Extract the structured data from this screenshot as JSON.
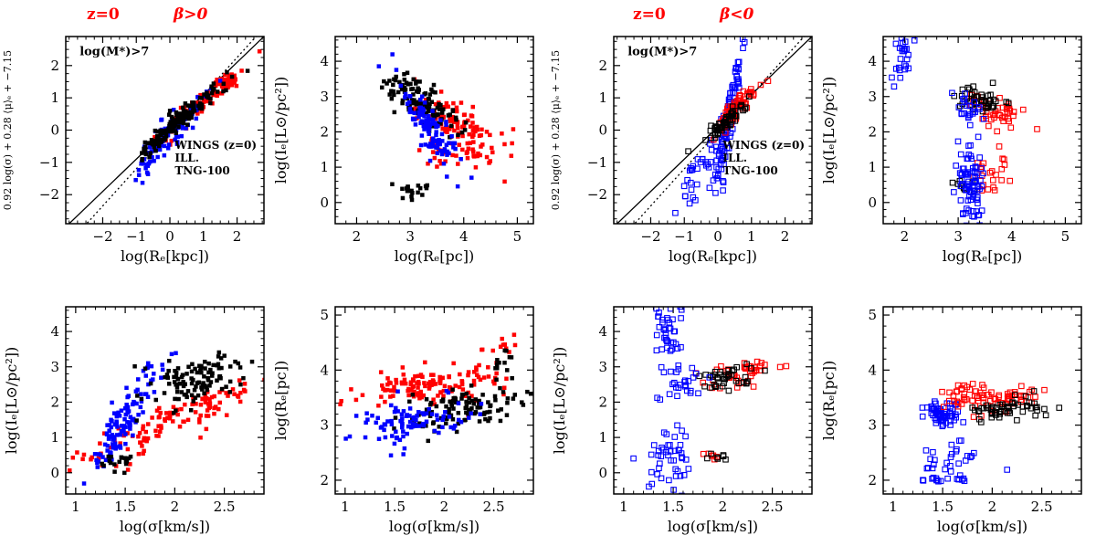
{
  "page": {
    "background": "#ffffff"
  },
  "groups": [
    {
      "id": "left",
      "z_label": "z=0",
      "beta_label": "β>0"
    },
    {
      "id": "right",
      "z_label": "z=0",
      "beta_label": "β<0"
    }
  ],
  "colors": {
    "wings": "#000000",
    "ill": "#ff0000",
    "tng": "#0000ff",
    "annotation": "#ff0000"
  },
  "chart_data": [
    {
      "id": "p1",
      "type": "scatter",
      "group": "left",
      "row": 0,
      "col": 0,
      "marker": "filled",
      "xlabel": "log(Rₑ[kpc])",
      "ylabel": "0.92 log(σ) + 0.28 ⟨μ⟩ₑ + −7.15",
      "ylabel_size": 11,
      "xlim": [
        -3.1,
        2.8
      ],
      "ylim": [
        -2.9,
        2.9
      ],
      "xticks": [
        -2,
        -1,
        0,
        1,
        2
      ],
      "yticks": [
        -2,
        -1,
        0,
        1,
        2
      ],
      "xminor": 0.25,
      "yminor": 0.25,
      "lines": [
        {
          "style": "solid",
          "slope": 1.0,
          "intercept": 0.1
        },
        {
          "style": "dotted",
          "slope": 1.15,
          "intercept": -0.05
        }
      ],
      "annotations": [
        {
          "text": "log(M*)>7",
          "color": "#ff0000",
          "fx": 0.07,
          "fy": 0.9,
          "size": 13
        }
      ],
      "legend": {
        "fx": 0.55,
        "fy": 0.4,
        "entries": [
          {
            "label": "WINGS (z=0)",
            "color": "#000000"
          },
          {
            "label": "ILL.",
            "color": "#ff0000"
          },
          {
            "label": "TNG-100",
            "color": "#0000ff"
          }
        ]
      },
      "series": [
        {
          "name": "ILL.",
          "color": "#ff0000",
          "clusters": [
            {
              "n": 90,
              "x": 0.75,
              "y": 0.7,
              "sx": 0.6,
              "sy": 0.55,
              "cor": 0.93
            },
            {
              "n": 30,
              "x": 1.75,
              "y": 1.5,
              "sx": 0.22,
              "sy": 0.16,
              "cor": 0.5
            }
          ]
        },
        {
          "name": "TNG-100",
          "color": "#0000ff",
          "clusters": [
            {
              "n": 90,
              "x": 0.15,
              "y": 0.05,
              "sx": 0.5,
              "sy": 0.5,
              "cor": 0.9
            },
            {
              "n": 25,
              "x": -0.7,
              "y": -0.95,
              "sx": 0.28,
              "sy": 0.38,
              "cor": 0.8
            }
          ]
        },
        {
          "name": "WINGS (z=0)",
          "color": "#000000",
          "clusters": [
            {
              "n": 140,
              "x": 0.5,
              "y": 0.5,
              "sx": 0.55,
              "sy": 0.5,
              "cor": 0.95
            },
            {
              "n": 25,
              "x": -0.45,
              "y": -0.35,
              "sx": 0.25,
              "sy": 0.25,
              "cor": 0.8
            }
          ]
        }
      ]
    },
    {
      "id": "p2",
      "type": "scatter",
      "group": "left",
      "row": 0,
      "col": 1,
      "marker": "filled",
      "xlabel": "log(Rₑ[pc])",
      "ylabel": "log(Iₑ[L⊙/pc²])",
      "xlim": [
        1.6,
        5.3
      ],
      "ylim": [
        -0.6,
        4.7
      ],
      "xticks": [
        2,
        3,
        4,
        5
      ],
      "yticks": [
        0,
        1,
        2,
        3,
        4
      ],
      "xminor": 0.2,
      "yminor": 0.2,
      "series": [
        {
          "name": "ILL.",
          "color": "#ff0000",
          "clusters": [
            {
              "n": 110,
              "x": 3.9,
              "y": 2.15,
              "sx": 0.45,
              "sy": 0.5,
              "cor": -0.75
            },
            {
              "n": 22,
              "x": 3.75,
              "y": 1.35,
              "sx": 0.28,
              "sy": 0.22,
              "cor": 0
            }
          ]
        },
        {
          "name": "WINGS (z=0)",
          "color": "#000000",
          "clusters": [
            {
              "n": 120,
              "x": 3.2,
              "y": 2.85,
              "sx": 0.33,
              "sy": 0.4,
              "cor": -0.7
            },
            {
              "n": 20,
              "x": 2.95,
              "y": 0.35,
              "sx": 0.16,
              "sy": 0.1,
              "cor": 0
            }
          ]
        },
        {
          "name": "TNG-100",
          "color": "#0000ff",
          "clusters": [
            {
              "n": 110,
              "x": 3.35,
              "y": 2.1,
              "sx": 0.28,
              "sy": 0.65,
              "cor": -0.85
            }
          ]
        }
      ]
    },
    {
      "id": "p3",
      "type": "scatter",
      "group": "left",
      "row": 1,
      "col": 0,
      "marker": "filled",
      "xlabel": "log(σ[km/s])",
      "ylabel": "log(Iₑ[L⊙/pc²])",
      "xlim": [
        0.9,
        2.9
      ],
      "ylim": [
        -0.6,
        4.7
      ],
      "xticks": [
        1,
        1.5,
        2,
        2.5
      ],
      "yticks": [
        0,
        1,
        2,
        3,
        4
      ],
      "xminor": 0.1,
      "yminor": 0.2,
      "series": [
        {
          "name": "ILL.",
          "color": "#ff0000",
          "clusters": [
            {
              "n": 95,
              "x": 1.85,
              "y": 1.35,
              "sx": 0.42,
              "sy": 0.62,
              "cor": 0.88
            },
            {
              "n": 28,
              "x": 2.45,
              "y": 2.1,
              "sx": 0.18,
              "sy": 0.22,
              "cor": 0.5
            }
          ]
        },
        {
          "name": "TNG-100",
          "color": "#0000ff",
          "clusters": [
            {
              "n": 100,
              "x": 1.55,
              "y": 1.75,
              "sx": 0.17,
              "sy": 0.75,
              "cor": 0.85
            },
            {
              "n": 20,
              "x": 1.38,
              "y": 0.85,
              "sx": 0.08,
              "sy": 0.3,
              "cor": 0.5
            }
          ]
        },
        {
          "name": "WINGS (z=0)",
          "color": "#000000",
          "clusters": [
            {
              "n": 110,
              "x": 2.2,
              "y": 2.55,
              "sx": 0.24,
              "sy": 0.38,
              "cor": 0.45
            },
            {
              "n": 18,
              "x": 1.45,
              "y": 0.32,
              "sx": 0.13,
              "sy": 0.1,
              "cor": 0
            }
          ]
        }
      ]
    },
    {
      "id": "p4",
      "type": "scatter",
      "group": "left",
      "row": 1,
      "col": 1,
      "marker": "filled",
      "xlabel": "log(σ[km/s])",
      "ylabel": "log(Rₑ[pc])",
      "xlim": [
        0.9,
        2.9
      ],
      "ylim": [
        1.75,
        5.15
      ],
      "xticks": [
        1,
        1.5,
        2,
        2.5
      ],
      "yticks": [
        2,
        3,
        4,
        5
      ],
      "xminor": 0.1,
      "yminor": 0.2,
      "series": [
        {
          "name": "ILL.",
          "color": "#ff0000",
          "clusters": [
            {
              "n": 120,
              "x": 1.8,
              "y": 3.7,
              "sx": 0.35,
              "sy": 0.17,
              "cor": 0.25
            },
            {
              "n": 22,
              "x": 2.5,
              "y": 4.3,
              "sx": 0.16,
              "sy": 0.3,
              "cor": 0.8
            }
          ]
        },
        {
          "name": "WINGS (z=0)",
          "color": "#000000",
          "clusters": [
            {
              "n": 110,
              "x": 2.15,
              "y": 3.3,
              "sx": 0.28,
              "sy": 0.2,
              "cor": 0.55
            },
            {
              "n": 12,
              "x": 2.62,
              "y": 4.05,
              "sx": 0.08,
              "sy": 0.18,
              "cor": 0.5
            }
          ]
        },
        {
          "name": "TNG-100",
          "color": "#0000ff",
          "clusters": [
            {
              "n": 95,
              "x": 1.7,
              "y": 3.1,
              "sx": 0.26,
              "sy": 0.22,
              "cor": 0.3
            }
          ]
        }
      ]
    },
    {
      "id": "p5",
      "type": "scatter",
      "group": "right",
      "row": 0,
      "col": 0,
      "marker": "open",
      "xlabel": "log(Rₑ[kpc])",
      "ylabel": "0.92 log(σ) + 0.28 ⟨μ⟩ₑ + −7.15",
      "ylabel_size": 11,
      "xlim": [
        -3.1,
        2.8
      ],
      "ylim": [
        -2.9,
        2.9
      ],
      "xticks": [
        -2,
        -1,
        0,
        1,
        2
      ],
      "yticks": [
        -2,
        -1,
        0,
        1,
        2
      ],
      "xminor": 0.25,
      "yminor": 0.25,
      "lines": [
        {
          "style": "solid",
          "slope": 1.0,
          "intercept": 0.1
        },
        {
          "style": "dotted",
          "slope": 1.15,
          "intercept": -0.05
        }
      ],
      "annotations": [
        {
          "text": "log(M*)>7",
          "color": "#ff0000",
          "fx": 0.07,
          "fy": 0.9,
          "size": 13
        }
      ],
      "legend": {
        "fx": 0.55,
        "fy": 0.4,
        "entries": [
          {
            "label": "WINGS (z=0)",
            "color": "#000000"
          },
          {
            "label": "ILL.",
            "color": "#ff0000"
          },
          {
            "label": "TNG-100",
            "color": "#0000ff"
          }
        ]
      },
      "series": [
        {
          "name": "TNG-100",
          "color": "#0000ff",
          "clusters": [
            {
              "n": 110,
              "x": 0.3,
              "y": 0.2,
              "sx": 0.2,
              "sy": 1.15,
              "cor": 0.9
            },
            {
              "n": 35,
              "x": -0.45,
              "y": -1.2,
              "sx": 0.32,
              "sy": 0.5,
              "cor": 0.75
            }
          ]
        },
        {
          "name": "ILL.",
          "color": "#ff0000",
          "clusters": [
            {
              "n": 75,
              "x": 0.5,
              "y": 0.6,
              "sx": 0.32,
              "sy": 0.38,
              "cor": 0.9
            }
          ]
        },
        {
          "name": "WINGS (z=0)",
          "color": "#000000",
          "clusters": [
            {
              "n": 65,
              "x": 0.3,
              "y": 0.3,
              "sx": 0.3,
              "sy": 0.28,
              "cor": 0.9
            }
          ]
        }
      ]
    },
    {
      "id": "p6",
      "type": "scatter",
      "group": "right",
      "row": 0,
      "col": 1,
      "marker": "open",
      "xlabel": "log(Rₑ[pc])",
      "ylabel": "log(Iₑ[L⊙/pc²])",
      "xlim": [
        1.6,
        5.3
      ],
      "ylim": [
        -0.6,
        4.7
      ],
      "xticks": [
        2,
        3,
        4,
        5
      ],
      "yticks": [
        0,
        1,
        2,
        3,
        4
      ],
      "xminor": 0.2,
      "yminor": 0.2,
      "series": [
        {
          "name": "ILL.",
          "color": "#ff0000",
          "clusters": [
            {
              "n": 45,
              "x": 3.75,
              "y": 2.55,
              "sx": 0.28,
              "sy": 0.26,
              "cor": -0.5
            },
            {
              "n": 22,
              "x": 3.6,
              "y": 0.85,
              "sx": 0.18,
              "sy": 0.28,
              "cor": 0
            }
          ]
        },
        {
          "name": "WINGS (z=0)",
          "color": "#000000",
          "clusters": [
            {
              "n": 40,
              "x": 3.4,
              "y": 2.9,
              "sx": 0.22,
              "sy": 0.17,
              "cor": -0.2
            },
            {
              "n": 10,
              "x": 3.1,
              "y": 0.5,
              "sx": 0.13,
              "sy": 0.12,
              "cor": 0
            }
          ]
        },
        {
          "name": "TNG-100",
          "color": "#0000ff",
          "clusters": [
            {
              "n": 26,
              "x": 1.95,
              "y": 4.0,
              "sx": 0.1,
              "sy": 0.42,
              "cor": 0
            },
            {
              "n": 78,
              "x": 3.25,
              "y": 0.55,
              "sx": 0.13,
              "sy": 0.55,
              "cor": -0.3
            },
            {
              "n": 24,
              "x": 3.2,
              "y": 2.65,
              "sx": 0.12,
              "sy": 0.25,
              "cor": 0
            }
          ]
        }
      ]
    },
    {
      "id": "p7",
      "type": "scatter",
      "group": "right",
      "row": 1,
      "col": 0,
      "marker": "open",
      "xlabel": "log(σ[km/s])",
      "ylabel": "log(Iₑ[L⊙/pc²])",
      "xlim": [
        0.9,
        2.9
      ],
      "ylim": [
        -0.6,
        4.7
      ],
      "xticks": [
        1,
        1.5,
        2,
        2.5
      ],
      "yticks": [
        0,
        1,
        2,
        3,
        4
      ],
      "xminor": 0.1,
      "yminor": 0.2,
      "series": [
        {
          "name": "ILL.",
          "color": "#ff0000",
          "clusters": [
            {
              "n": 45,
              "x": 2.2,
              "y": 2.8,
              "sx": 0.16,
              "sy": 0.2,
              "cor": 0.4
            },
            {
              "n": 6,
              "x": 1.92,
              "y": 0.5,
              "sx": 0.08,
              "sy": 0.08,
              "cor": 0
            }
          ]
        },
        {
          "name": "WINGS (z=0)",
          "color": "#000000",
          "clusters": [
            {
              "n": 40,
              "x": 2.05,
              "y": 2.7,
              "sx": 0.15,
              "sy": 0.2,
              "cor": 0.4
            },
            {
              "n": 7,
              "x": 2.0,
              "y": 0.48,
              "sx": 0.07,
              "sy": 0.08,
              "cor": 0
            }
          ]
        },
        {
          "name": "TNG-100",
          "color": "#0000ff",
          "clusters": [
            {
              "n": 42,
              "x": 1.45,
              "y": 3.85,
              "sx": 0.09,
              "sy": 0.45,
              "cor": 0
            },
            {
              "n": 26,
              "x": 1.55,
              "y": 2.6,
              "sx": 0.11,
              "sy": 0.28,
              "cor": 0
            },
            {
              "n": 45,
              "x": 1.5,
              "y": 0.35,
              "sx": 0.11,
              "sy": 0.45,
              "cor": 0
            }
          ]
        }
      ]
    },
    {
      "id": "p8",
      "type": "scatter",
      "group": "right",
      "row": 1,
      "col": 1,
      "marker": "open",
      "xlabel": "log(σ[km/s])",
      "ylabel": "log(Rₑ[pc])",
      "xlim": [
        0.9,
        2.9
      ],
      "ylim": [
        1.75,
        5.15
      ],
      "xticks": [
        1,
        1.5,
        2,
        2.5
      ],
      "yticks": [
        2,
        3,
        4,
        5
      ],
      "xminor": 0.1,
      "yminor": 0.2,
      "series": [
        {
          "name": "TNG-100",
          "color": "#0000ff",
          "clusters": [
            {
              "n": 65,
              "x": 1.5,
              "y": 3.2,
              "sx": 0.09,
              "sy": 0.11,
              "cor": 0
            },
            {
              "n": 30,
              "x": 1.55,
              "y": 2.35,
              "sx": 0.16,
              "sy": 0.22,
              "cor": 0
            },
            {
              "n": 14,
              "x": 1.5,
              "y": 2.02,
              "sx": 0.14,
              "sy": 0.03,
              "cor": 0
            }
          ]
        },
        {
          "name": "ILL.",
          "color": "#ff0000",
          "clusters": [
            {
              "n": 60,
              "x": 1.85,
              "y": 3.5,
              "sx": 0.22,
              "sy": 0.13,
              "cor": 0.2
            },
            {
              "n": 18,
              "x": 2.3,
              "y": 3.5,
              "sx": 0.14,
              "sy": 0.1,
              "cor": 0.3
            }
          ]
        },
        {
          "name": "WINGS (z=0)",
          "color": "#000000",
          "clusters": [
            {
              "n": 55,
              "x": 2.15,
              "y": 3.3,
              "sx": 0.2,
              "sy": 0.12,
              "cor": 0.35
            }
          ]
        }
      ]
    }
  ]
}
